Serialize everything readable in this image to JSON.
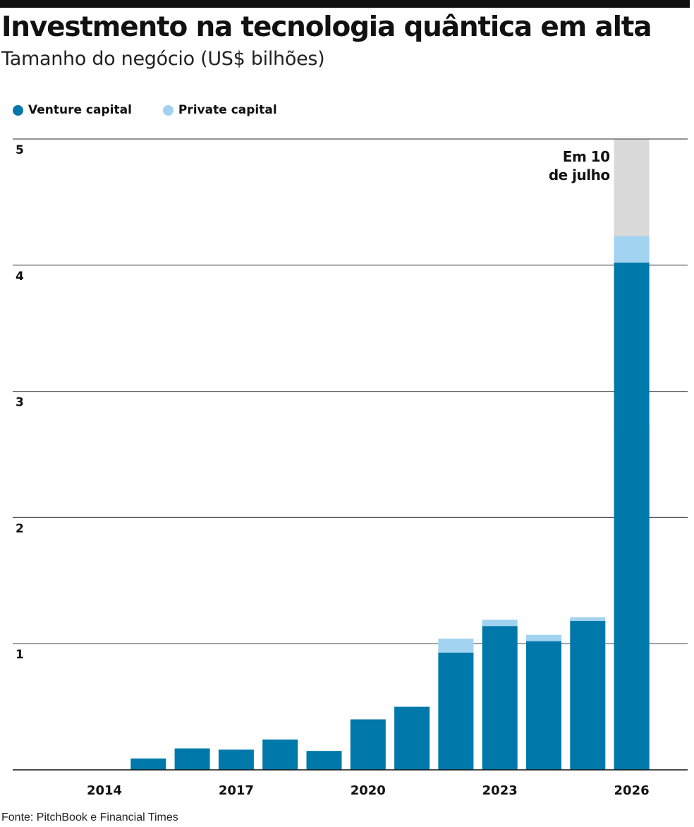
{
  "title": "Investmento na tecnologia quântica em alta",
  "subtitle": "Tamanho do negócio (US$ bilhões)",
  "source": "Fonte: PitchBook e Financial Times",
  "colors": {
    "venture": "#0078aa",
    "private": "#a1d3f1",
    "remaining": "#d9d9d9"
  },
  "chart_data": {
    "type": "bar",
    "stacked": true,
    "x": [
      2014,
      2015,
      2016,
      2017,
      2018,
      2019,
      2020,
      2021,
      2022,
      2023,
      2024,
      2025,
      2026
    ],
    "series": [
      {
        "name": "Venture capital",
        "color": "#0078aa",
        "values": [
          0,
          0.09,
          0.17,
          0.16,
          0.24,
          0.15,
          0.4,
          0.5,
          0.93,
          1.14,
          1.02,
          1.18,
          4.02
        ]
      },
      {
        "name": "Private capital",
        "color": "#a1d3f1",
        "values": [
          0,
          0,
          0,
          0,
          0,
          0,
          0,
          0,
          0.11,
          0.05,
          0.05,
          0.03,
          0.21
        ]
      }
    ],
    "partial_year": {
      "year": 2026,
      "value": 2.73,
      "label_line1": "Em 10",
      "label_line2": "de julho"
    },
    "xticks": [
      "2014",
      "2017",
      "2020",
      "2023",
      "2026"
    ],
    "yticks": [
      "1",
      "2",
      "3",
      "4",
      "5"
    ],
    "ylim": [
      0,
      5
    ],
    "grid": true,
    "legend": "top-left"
  }
}
